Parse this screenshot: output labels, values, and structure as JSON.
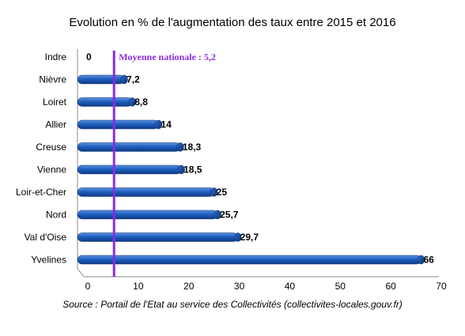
{
  "chart_data": {
    "type": "bar",
    "orientation": "horizontal",
    "title": "Evolution en % de l'augmentation des taux entre 2015 et 2016",
    "categories": [
      "Indre",
      "Nièvre",
      "Loiret",
      "Allier",
      "Creuse",
      "Vienne",
      "Loir-et-Cher",
      "Nord",
      "Val d'Oise",
      "Yvelines"
    ],
    "values": [
      0,
      7.2,
      8.8,
      14,
      18.3,
      18.5,
      25,
      25.7,
      29.7,
      66
    ],
    "value_labels": [
      "0",
      "7,2",
      "8,8",
      "14",
      "18,3",
      "18,5",
      "25",
      "25,7",
      "29,7",
      "66"
    ],
    "xlim": [
      0,
      70
    ],
    "xticks": [
      "0",
      "10",
      "20",
      "30",
      "40",
      "50",
      "60",
      "70"
    ],
    "reference_line": {
      "value": 5.2,
      "label": "Moyenne nationale : 5,2",
      "color": "#8a2be2"
    },
    "bar_color": "#1f5fbf",
    "grid": false,
    "legend": "none"
  },
  "source": "Source : Portail de l'Etat au service des Collectivités (collectivites-locales.gouv.fr)"
}
